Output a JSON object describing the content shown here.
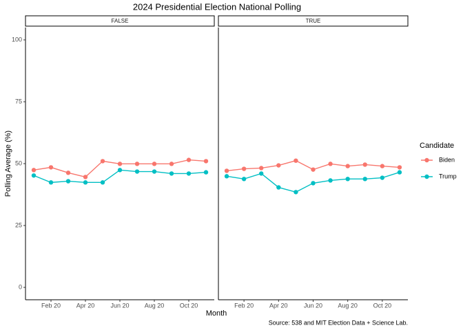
{
  "chart_data": {
    "type": "line",
    "title": "2024 Presidential Election National Polling",
    "xlabel": "Month",
    "ylabel": "Polling Average (%)",
    "caption": "Source: 538 and MIT Election Data + Science Lab.",
    "legend_title": "Candidate",
    "legend": "right",
    "x": [
      "2020-01",
      "2020-02",
      "2020-03",
      "2020-04",
      "2020-05",
      "2020-06",
      "2020-07",
      "2020-08",
      "2020-09",
      "2020-10",
      "2020-11"
    ],
    "xticks": [
      {
        "value": "2020-02",
        "label": "Feb 20"
      },
      {
        "value": "2020-04",
        "label": "Apr 20"
      },
      {
        "value": "2020-06",
        "label": "Jun 20"
      },
      {
        "value": "2020-08",
        "label": "Aug 20"
      },
      {
        "value": "2020-10",
        "label": "Oct 20"
      }
    ],
    "ylim": [
      -5,
      105
    ],
    "yticks": [
      0,
      25,
      50,
      75,
      100
    ],
    "facets": [
      {
        "label": "FALSE",
        "series": [
          {
            "name": "Biden",
            "color": "#F8766D",
            "values": [
              47.4,
              48.5,
              46.3,
              44.6,
              51.0,
              49.9,
              49.9,
              49.9,
              49.9,
              51.5,
              51.0
            ]
          },
          {
            "name": "Trump",
            "color": "#00BFC4",
            "values": [
              45.2,
              42.4,
              42.9,
              42.4,
              42.4,
              47.4,
              46.8,
              46.8,
              46.0,
              46.0,
              46.5
            ]
          }
        ]
      },
      {
        "label": "TRUE",
        "series": [
          {
            "name": "Biden",
            "color": "#F8766D",
            "values": [
              47.1,
              47.9,
              48.2,
              49.3,
              51.2,
              47.6,
              49.9,
              49.0,
              49.6,
              49.0,
              48.5
            ]
          },
          {
            "name": "Trump",
            "color": "#00BFC4",
            "values": [
              44.9,
              43.8,
              46.0,
              40.4,
              38.5,
              42.1,
              43.2,
              43.8,
              43.8,
              44.3,
              46.5
            ]
          }
        ]
      }
    ]
  }
}
